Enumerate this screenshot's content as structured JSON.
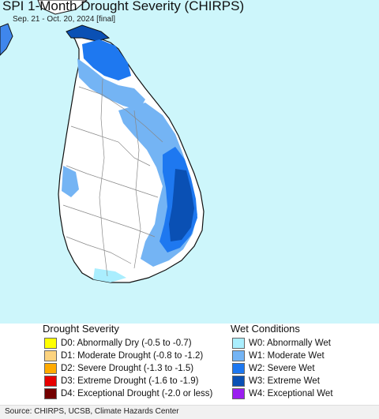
{
  "title": "SPI 1-Month Drought Severity (CHIRPS)",
  "subtitle": "Sep. 21 - Oct. 20, 2024 [final]",
  "map": {
    "region": "Sri Lanka",
    "colors": {
      "ocean": "#cdf6fb",
      "land": "#ffffff",
      "border": "#888888",
      "coast": "#111111"
    }
  },
  "legend": {
    "drought_heading": "Drought Severity",
    "wet_heading": "Wet Conditions",
    "drought": [
      {
        "label": "D0: Abnormally Dry (-0.5 to -0.7)",
        "color": "#ffff00"
      },
      {
        "label": "D1: Moderate Drought (-0.8 to -1.2)",
        "color": "#fcd37f"
      },
      {
        "label": "D2: Severe Drought (-1.3 to -1.5)",
        "color": "#ffaa00"
      },
      {
        "label": "D3: Extreme Drought (-1.6 to -1.9)",
        "color": "#e60000"
      },
      {
        "label": "D4: Exceptional Drought (-2.0 or less)",
        "color": "#730000"
      }
    ],
    "wet": [
      {
        "label": "W0: Abnormally Wet",
        "color": "#aaeefe"
      },
      {
        "label": "W1: Moderate Wet",
        "color": "#74b4f4"
      },
      {
        "label": "W2: Severe Wet",
        "color": "#1e78f0"
      },
      {
        "label": "W3: Extreme Wet",
        "color": "#0a50b4"
      },
      {
        "label": "W4: Exceptional Wet",
        "color": "#9b1ef0"
      }
    ]
  },
  "footer": "Source: CHIRPS, UCSB, Climate Hazards Center"
}
